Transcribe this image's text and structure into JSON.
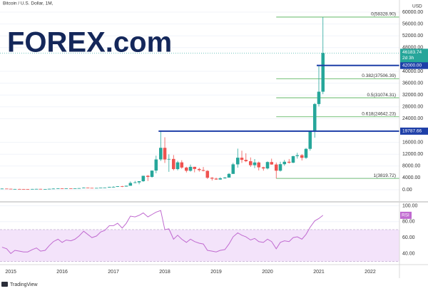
{
  "chart_data": [
    {
      "type": "candlestick",
      "title": "Bitcoin / U.S. Dollar, 1M,",
      "currency": "USD",
      "logo": "FOREX.com",
      "source": "TradingView",
      "up_color": "#26a69a",
      "down_color": "#ef5350",
      "grid": true,
      "x": [
        2014.83,
        2014.92,
        2015.0,
        2015.08,
        2015.17,
        2015.25,
        2015.33,
        2015.42,
        2015.5,
        2015.58,
        2015.67,
        2015.75,
        2015.83,
        2015.92,
        2016.0,
        2016.08,
        2016.17,
        2016.25,
        2016.33,
        2016.42,
        2016.5,
        2016.58,
        2016.67,
        2016.75,
        2016.83,
        2016.92,
        2017.0,
        2017.08,
        2017.17,
        2017.25,
        2017.33,
        2017.42,
        2017.5,
        2017.58,
        2017.67,
        2017.75,
        2017.83,
        2017.92,
        2018.0,
        2018.08,
        2018.17,
        2018.25,
        2018.33,
        2018.42,
        2018.5,
        2018.58,
        2018.67,
        2018.75,
        2018.83,
        2018.92,
        2019.0,
        2019.08,
        2019.17,
        2019.25,
        2019.33,
        2019.42,
        2019.5,
        2019.58,
        2019.67,
        2019.75,
        2019.83,
        2019.92,
        2020.0,
        2020.08,
        2020.17,
        2020.25,
        2020.33,
        2020.42,
        2020.5,
        2020.58,
        2020.67,
        2020.75,
        2020.83,
        2020.92,
        2021.0,
        2021.08
      ],
      "open": [
        338,
        378,
        320,
        217,
        254,
        244,
        236,
        230,
        263,
        284,
        230,
        236,
        314,
        377,
        430,
        368,
        437,
        416,
        448,
        531,
        673,
        624,
        575,
        609,
        700,
        742,
        963,
        970,
        1190,
        1071,
        1347,
        2286,
        2480,
        2875,
        4703,
        4339,
        6468,
        10233,
        14156,
        10221,
        10397,
        6973,
        9240,
        7494,
        6404,
        7730,
        7011,
        6626,
        6371,
        4041,
        3742,
        3457,
        3854,
        4105,
        5350,
        8574,
        10817,
        10085,
        9630,
        8293,
        9199,
        7569,
        7193,
        9350,
        8523,
        6424,
        8624,
        9446,
        9135,
        11351,
        11655,
        10779,
        13804,
        19700,
        28950,
        33114
      ],
      "high": [
        457,
        384,
        320,
        265,
        300,
        261,
        247,
        268,
        316,
        286,
        244,
        334,
        502,
        468,
        462,
        445,
        439,
        467,
        547,
        778,
        704,
        624,
        627,
        733,
        755,
        979,
        1162,
        1212,
        1294,
        1347,
        2791,
        2980,
        2900,
        4736,
        4975,
        6470,
        11517,
        19787.66,
        17712,
        11958,
        11711,
        9745,
        9964,
        7754,
        8507,
        7760,
        7410,
        7680,
        6600,
        4255,
        4073,
        4210,
        4296,
        5642,
        9074,
        13880,
        13183,
        12326,
        10905,
        10370,
        9505,
        7750,
        9578,
        10500,
        9188,
        9460,
        10067,
        10380,
        11444,
        12468,
        12050,
        14100,
        19484,
        29300,
        42000,
        58328.9
      ],
      "low": [
        316,
        300,
        152,
        212,
        235,
        214,
        228,
        220,
        254,
        199,
        226,
        236,
        298,
        349,
        352,
        364,
        393,
        414,
        436,
        516,
        606,
        531,
        574,
        608,
        682,
        740,
        752,
        936,
        892,
        1060,
        1347,
        2169,
        1830,
        2688,
        2951,
        4108,
        5555,
        9694,
        9035,
        6048,
        6533,
        6526,
        7090,
        5826,
        6120,
        5880,
        6111,
        6200,
        3652,
        3122,
        3349,
        3391,
        3734,
        4096,
        5332,
        7446,
        9071,
        9320,
        7710,
        7300,
        6515,
        6435,
        6871,
        8450,
        3819.72,
        6150,
        8117,
        8833,
        8976,
        10518,
        9875,
        10416,
        13195,
        17572,
        28130,
        32296
      ],
      "close": [
        378,
        320,
        217,
        254,
        244,
        236,
        230,
        263,
        284,
        230,
        236,
        314,
        377,
        430,
        368,
        437,
        416,
        448,
        531,
        673,
        624,
        575,
        609,
        700,
        742,
        963,
        970,
        1190,
        1071,
        1347,
        2286,
        2480,
        2875,
        4703,
        4339,
        6468,
        10233,
        14156,
        10221,
        10397,
        6973,
        9240,
        7494,
        6404,
        7730,
        7011,
        6626,
        6371,
        4041,
        3742,
        3457,
        3854,
        4105,
        5350,
        8574,
        10817,
        10085,
        9630,
        8293,
        9199,
        7569,
        7193,
        9350,
        8523,
        6424,
        8624,
        9446,
        9135,
        11351,
        11655,
        10779,
        13804,
        19700,
        28950,
        33114,
        46183.74
      ],
      "countdown": "2d 3h",
      "xlim": [
        2014.79,
        2022.57
      ],
      "xticks": [
        2015,
        2016,
        2017,
        2018,
        2019,
        2020,
        2021,
        2022
      ],
      "ylim": [
        -3855,
        64096
      ],
      "yticks": [
        {
          "value": 0,
          "label": "0.00"
        },
        {
          "value": 4000,
          "label": "4000.00"
        },
        {
          "value": 8000,
          "label": "8000.00"
        },
        {
          "value": 12000,
          "label": "12000.00"
        },
        {
          "value": 16000,
          "label": "16000.00"
        },
        {
          "value": 24000,
          "label": "24000.00"
        },
        {
          "value": 28000,
          "label": "28000.00"
        },
        {
          "value": 32000,
          "label": "32000.00"
        },
        {
          "value": 36000,
          "label": "36000.00"
        },
        {
          "value": 40000,
          "label": "40000.00"
        },
        {
          "value": 48000,
          "label": "48000.00"
        },
        {
          "value": 52000,
          "label": "52000.00"
        },
        {
          "value": 56000,
          "label": "56000.00"
        },
        {
          "value": 60000,
          "label": "60000.00"
        }
      ],
      "levels": [
        {
          "value": 42000,
          "label": "42000.00"
        },
        {
          "value": 19787.66
        }
      ],
      "level_color": "#1e3fa8",
      "fib": [
        {
          "value": 58328.9,
          "label": "0(58328.90)"
        },
        {
          "value": 37506.39,
          "label": "0.382(37506.39)"
        },
        {
          "value": 31074.31,
          "label": "0.5(31074.31)"
        },
        {
          "value": 24642.23,
          "label": "0.618(24642.23)"
        },
        {
          "value": 3819.72,
          "label": "1(3819.72)"
        }
      ],
      "fib_color": "#4caf50"
    },
    {
      "type": "line",
      "name": "RSI",
      "color": "#c06ad0",
      "band": [
        30,
        70
      ],
      "band_color": "#f3e3fa",
      "values": [
        48,
        46,
        40,
        44,
        43,
        42,
        42,
        45,
        47,
        43,
        44,
        50,
        55,
        58,
        54,
        57,
        56,
        58,
        62,
        68,
        64,
        60,
        62,
        67,
        69,
        75,
        75,
        78,
        72,
        78,
        87,
        86,
        88,
        91,
        86,
        89,
        92,
        94,
        70,
        71,
        58,
        63,
        58,
        54,
        58,
        55,
        53,
        52,
        44,
        43,
        42,
        44,
        45,
        52,
        61,
        66,
        63,
        61,
        57,
        59,
        55,
        54,
        58,
        55,
        46,
        54,
        56,
        55,
        60,
        61,
        58,
        64,
        73,
        81,
        84,
        88
      ],
      "ylim": [
        27,
        104
      ],
      "yticks": [
        {
          "value": 100,
          "label": "100.00"
        },
        {
          "value": 80,
          "label": "80.00"
        },
        {
          "value": 60,
          "label": "60.00"
        },
        {
          "value": 40,
          "label": "40.00"
        }
      ]
    }
  ]
}
